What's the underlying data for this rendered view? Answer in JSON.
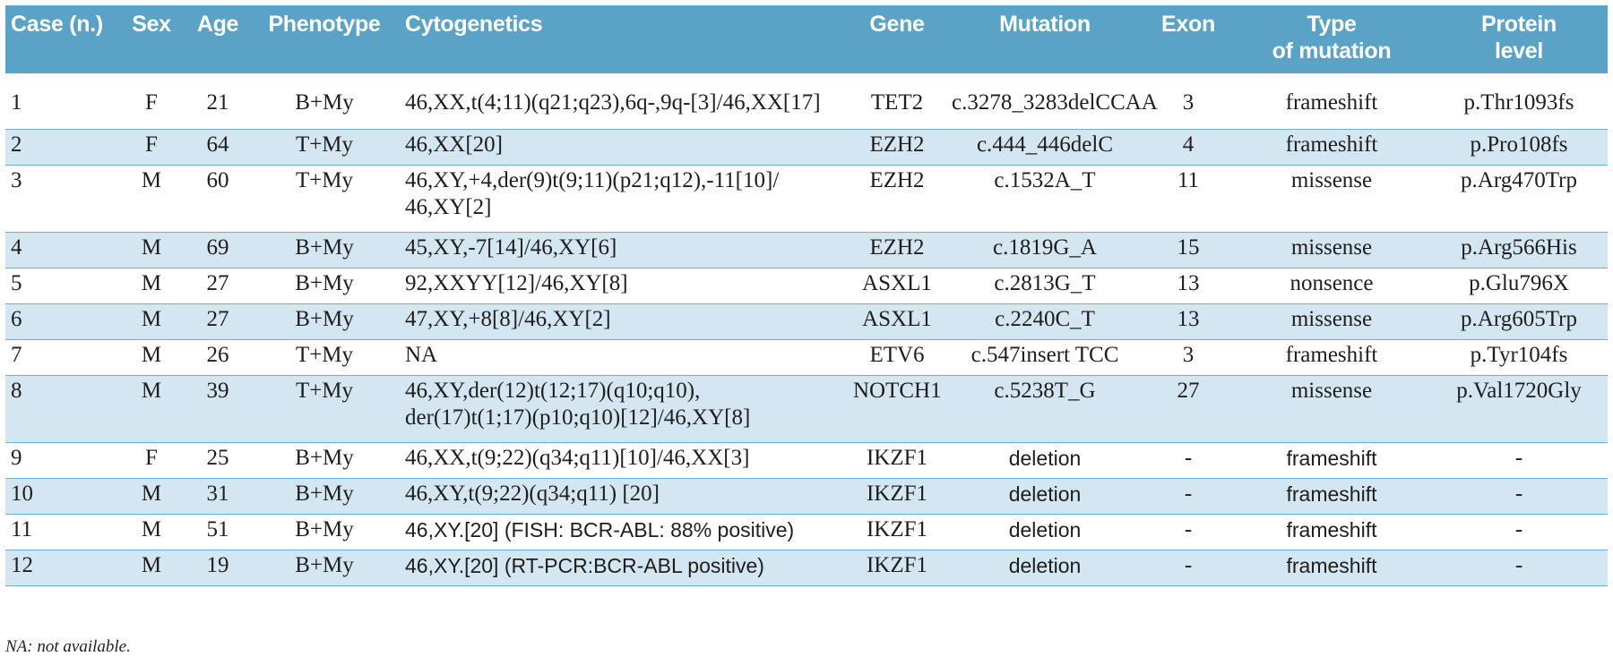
{
  "table": {
    "headers": [
      "Case (n.)",
      "Sex",
      "Age",
      "Phenotype",
      "Cytogenetics",
      "Gene",
      "Mutation",
      "Exon",
      "Type\nof mutation",
      "Protein\nlevel"
    ],
    "rows": [
      [
        "1",
        "F",
        "21",
        "B+My",
        "46,XX,t(4;11)(q21;q23),6q-,9q-[3]/46,XX[17]",
        "TET2",
        "c.3278_3283delCCAA",
        "3",
        "frameshift",
        "p.Thr1093fs"
      ],
      [
        "2",
        "F",
        "64",
        "T+My",
        "46,XX[20]",
        "EZH2",
        "c.444_446delC",
        "4",
        "frameshift",
        "p.Pro108fs"
      ],
      [
        "3",
        "M",
        "60",
        "T+My",
        "46,XY,+4,der(9)t(9;11)(p21;q12),-11[10]/\n46,XY[2]",
        "EZH2",
        "c.1532A_T",
        "11",
        "missense",
        "p.Arg470Trp"
      ],
      [
        "4",
        "M",
        "69",
        "B+My",
        "45,XY,-7[14]/46,XY[6]",
        "EZH2",
        "c.1819G_A",
        "15",
        "missense",
        "p.Arg566His"
      ],
      [
        "5",
        "M",
        "27",
        "B+My",
        "92,XXYY[12]/46,XY[8]",
        "ASXL1",
        "c.2813G_T",
        "13",
        "nonsence",
        "p.Glu796X"
      ],
      [
        "6",
        "M",
        "27",
        "B+My",
        "47,XY,+8[8]/46,XY[2]",
        "ASXL1",
        "c.2240C_T",
        "13",
        "missense",
        "p.Arg605Trp"
      ],
      [
        "7",
        "M",
        "26",
        "T+My",
        "NA",
        "ETV6",
        "c.547insert TCC",
        "3",
        "frameshift",
        "p.Tyr104fs"
      ],
      [
        "8",
        "M",
        "39",
        "T+My",
        "46,XY,der(12)t(12;17)(q10;q10),\nder(17)t(1;17)(p10;q10)[12]/46,XY[8]",
        "NOTCH1",
        "c.5238T_G",
        "27",
        "missense",
        "p.Val1720Gly"
      ],
      [
        "9",
        "F",
        "25",
        "B+My",
        "46,XX,t(9;22)(q34;q11)[10]/46,XX[3]",
        "IKZF1",
        "deletion",
        "-",
        "frameshift",
        "-"
      ],
      [
        "10",
        "M",
        "31",
        "B+My",
        "46,XY,t(9;22)(q34;q11) [20]",
        "IKZF1",
        "deletion",
        "-",
        "frameshift",
        "-"
      ],
      [
        "11",
        "M",
        "51",
        "B+My",
        "46,XY.[20] (FISH: BCR-ABL: 88% positive)",
        "IKZF1",
        "deletion",
        "-",
        "frameshift",
        "-"
      ],
      [
        "12",
        "M",
        "19",
        "B+My",
        "46,XY.[20]  (RT-PCR:BCR-ABL positive)",
        "IKZF1",
        "deletion",
        "-",
        "frameshift",
        "-"
      ]
    ]
  },
  "footnote": "NA: not available.",
  "colors": {
    "header_bg": "#5aa3c6",
    "header_text": "#ffffff",
    "shaded_row_bg": "#d3e6f1",
    "rule": "#6aaed0"
  }
}
